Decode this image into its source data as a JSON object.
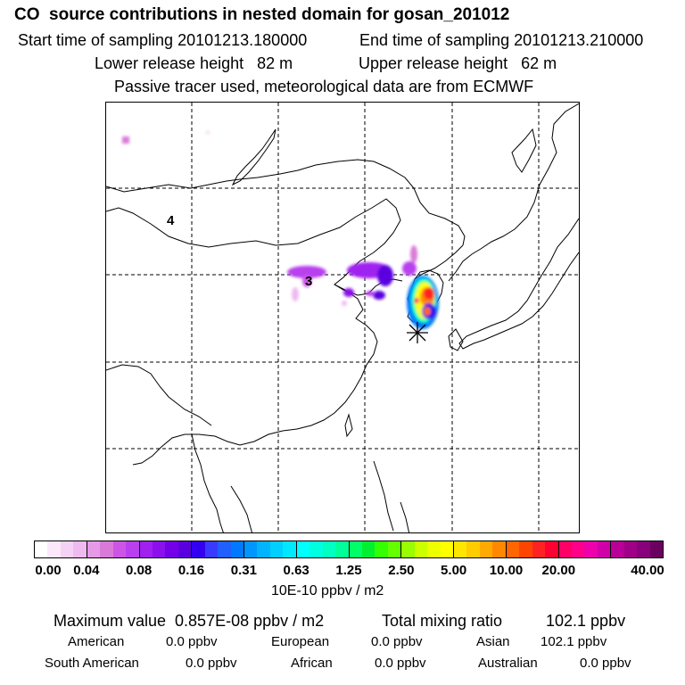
{
  "header": {
    "title": "CO  source contributions in nested domain for gosan_201012",
    "start_label": "Start time of sampling 20101213.180000",
    "end_label": "End time of sampling 20101213.210000",
    "lower_label": "Lower release height   82 m",
    "upper_label": "Upper release height   62 m",
    "note": "Passive tracer used, meteorological data are from ECMWF"
  },
  "map": {
    "region_labels": [
      "4",
      "3"
    ],
    "station_marker": "*"
  },
  "colorbar": {
    "ticks": [
      "0.00",
      "0.04",
      "0.08",
      "0.16",
      "0.31",
      "0.63",
      "1.25",
      "2.50",
      "5.00",
      "10.00",
      "20.00",
      "40.00"
    ],
    "unit": "10E-10 ppbv / m2",
    "segments": [
      [
        "#ffffff",
        "#fbe8fb",
        "#f5d2f5",
        "#efbaef"
      ],
      [
        "#e69ae6",
        "#d97ad9",
        "#cc55e6",
        "#b840ef"
      ],
      [
        "#a020f0",
        "#8a10ec",
        "#7400e8",
        "#5a00e0"
      ],
      [
        "#3200ee",
        "#3a3aff",
        "#2060ff",
        "#0078ff"
      ],
      [
        "#0096ff",
        "#00b4ff",
        "#00cfff",
        "#00e8ff"
      ],
      [
        "#00ffff",
        "#00ffe0",
        "#00ffc0",
        "#00ff99"
      ],
      [
        "#00ff66",
        "#00f030",
        "#33ff00",
        "#66ff00"
      ],
      [
        "#99ff00",
        "#ccff00",
        "#eeff00",
        "#ffff00"
      ],
      [
        "#ffe600",
        "#ffcc00",
        "#ffaa00",
        "#ff8800"
      ],
      [
        "#ff6600",
        "#ff4400",
        "#ff2222",
        "#ff0033"
      ],
      [
        "#ff0066",
        "#ff0088",
        "#ee00aa",
        "#d000a8"
      ],
      [
        "#b80098",
        "#a00088",
        "#88007a",
        "#6a0060"
      ]
    ]
  },
  "footer": {
    "max_label": "Maximum value  0.857E-08 ppbv / m2",
    "total_label": "Total mixing ratio",
    "total_value": "102.1 ppbv",
    "contributions": [
      {
        "name": "American",
        "value": "0.0 ppbv"
      },
      {
        "name": "European",
        "value": "0.0 ppbv"
      },
      {
        "name": "Asian",
        "value": "102.1 ppbv"
      },
      {
        "name": "South American",
        "value": "0.0 ppbv"
      },
      {
        "name": "African",
        "value": "0.0 ppbv"
      },
      {
        "name": "Australian",
        "value": "0.0 ppbv"
      }
    ]
  }
}
